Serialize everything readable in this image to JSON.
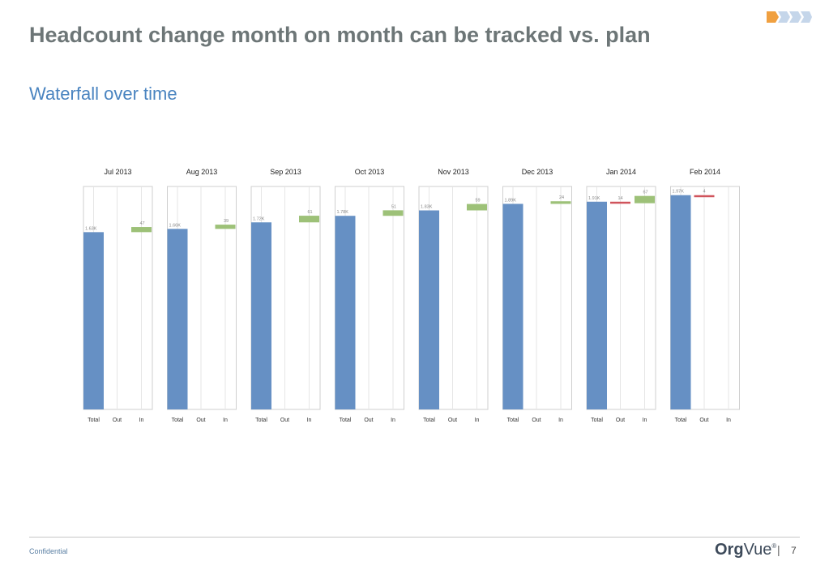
{
  "header": {
    "title": "Headcount change month on month can be tracked vs. plan",
    "subtitle": "Waterfall over time"
  },
  "footer": {
    "confidential": "Confidential",
    "brand_org": "Org",
    "brand_vue": "Vue",
    "brand_mark": "®",
    "separator": "|",
    "page_number": "7"
  },
  "colors": {
    "total": "#6690c4",
    "out": "#d0545c",
    "in": "#9dc178",
    "panel_border": "#cfcfcf",
    "logo_orange": "#f0a040",
    "logo_blue": "#c5d6ea"
  },
  "chart_data": {
    "type": "bar",
    "subtype": "waterfall",
    "categories": [
      "Total",
      "Out",
      "In"
    ],
    "panels": [
      {
        "month": "Jul 2013",
        "total": 1630,
        "total_label": "1.63K",
        "out": 0,
        "out_label": "",
        "in": 47,
        "in_label": "47"
      },
      {
        "month": "Aug 2013",
        "total": 1660,
        "total_label": "1.66K",
        "out": 0,
        "out_label": "",
        "in": 39,
        "in_label": "39"
      },
      {
        "month": "Sep 2013",
        "total": 1720,
        "total_label": "1.72K",
        "out": 0,
        "out_label": "",
        "in": 61,
        "in_label": "61"
      },
      {
        "month": "Oct 2013",
        "total": 1780,
        "total_label": "1.78K",
        "out": 0,
        "out_label": "",
        "in": 51,
        "in_label": "51"
      },
      {
        "month": "Nov 2013",
        "total": 1830,
        "total_label": "1.83K",
        "out": 0,
        "out_label": "",
        "in": 59,
        "in_label": "59"
      },
      {
        "month": "Dec 2013",
        "total": 1890,
        "total_label": "1.89K",
        "out": 0,
        "out_label": "",
        "in": 24,
        "in_label": "24"
      },
      {
        "month": "Jan 2014",
        "total": 1910,
        "total_label": "1.91K",
        "out": 14,
        "out_label": "14",
        "in": 67,
        "in_label": "67"
      },
      {
        "month": "Feb 2014",
        "total": 1970,
        "total_label": "1.97K",
        "out": 4,
        "out_label": "4",
        "in": 0,
        "in_label": ""
      }
    ],
    "ylim": [
      0,
      2050
    ],
    "grid": false,
    "legend": "none"
  }
}
